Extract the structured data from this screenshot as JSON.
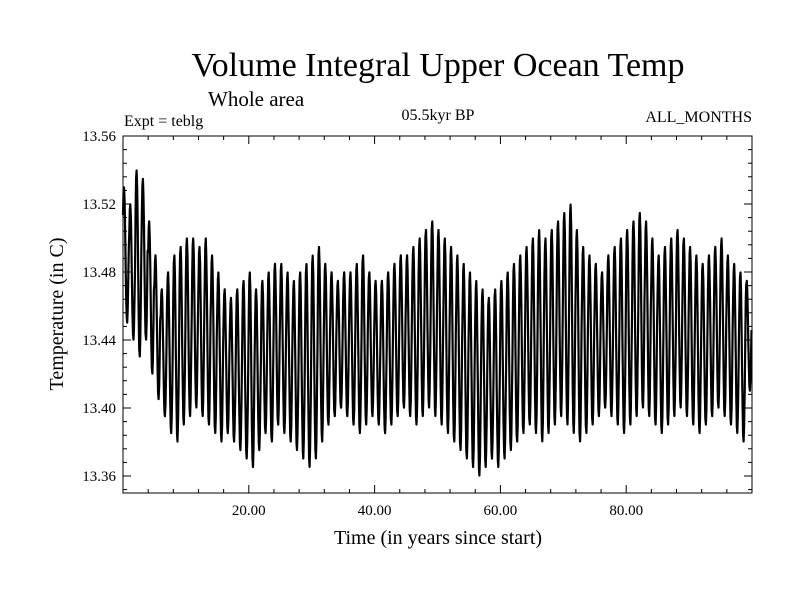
{
  "chart_data": {
    "type": "line",
    "title": "Volume Integral Upper Ocean Temp",
    "subtitle": "Whole area",
    "expt_label": "Expt = teblg",
    "period_label": "05.5kyr BP",
    "months_label": "ALL_MONTHS",
    "xlabel": "Time (in years since start)",
    "ylabel": "Temperature (in C)",
    "xlim": [
      0,
      100
    ],
    "ylim": [
      13.35,
      13.56
    ],
    "x_ticks": [
      20,
      40,
      60,
      80
    ],
    "x_tick_labels": [
      "20.00",
      "40.00",
      "60.00",
      "80.00"
    ],
    "y_ticks": [
      13.36,
      13.4,
      13.44,
      13.48,
      13.52,
      13.56
    ],
    "y_tick_labels": [
      "13.36",
      "13.40",
      "13.44",
      "13.48",
      "13.52",
      "13.56"
    ],
    "series": [
      {
        "name": "upper ocean temperature",
        "sampling": "monthly, annual cycle",
        "annual_max": [
          13.53,
          13.52,
          13.54,
          13.535,
          13.51,
          13.49,
          13.47,
          13.48,
          13.49,
          13.495,
          13.5,
          13.5,
          13.495,
          13.5,
          13.49,
          13.48,
          13.47,
          13.465,
          13.47,
          13.475,
          13.48,
          13.47,
          13.475,
          13.48,
          13.485,
          13.485,
          13.48,
          13.475,
          13.48,
          13.485,
          13.49,
          13.495,
          13.485,
          13.48,
          13.475,
          13.48,
          13.48,
          13.485,
          13.49,
          13.48,
          13.475,
          13.475,
          13.48,
          13.485,
          13.49,
          13.49,
          13.495,
          13.5,
          13.505,
          13.51,
          13.505,
          13.5,
          13.495,
          13.49,
          13.485,
          13.48,
          13.475,
          13.47,
          13.465,
          13.47,
          13.475,
          13.48,
          13.485,
          13.49,
          13.495,
          13.5,
          13.505,
          13.5,
          13.505,
          13.51,
          13.515,
          13.52,
          13.505,
          13.495,
          13.49,
          13.485,
          13.48,
          13.49,
          13.495,
          13.5,
          13.505,
          13.51,
          13.515,
          13.51,
          13.5,
          13.49,
          13.495,
          13.5,
          13.505,
          13.5,
          13.495,
          13.49,
          13.485,
          13.49,
          13.495,
          13.5,
          13.49,
          13.485,
          13.48,
          13.475
        ],
        "annual_min": [
          13.45,
          13.44,
          13.43,
          13.44,
          13.42,
          13.405,
          13.395,
          13.385,
          13.38,
          13.39,
          13.395,
          13.4,
          13.395,
          13.39,
          13.385,
          13.38,
          13.385,
          13.38,
          13.375,
          13.37,
          13.365,
          13.375,
          13.385,
          13.38,
          13.39,
          13.385,
          13.38,
          13.375,
          13.37,
          13.365,
          13.37,
          13.38,
          13.39,
          13.395,
          13.4,
          13.395,
          13.39,
          13.385,
          13.39,
          13.395,
          13.39,
          13.385,
          13.39,
          13.395,
          13.4,
          13.395,
          13.39,
          13.395,
          13.4,
          13.395,
          13.39,
          13.385,
          13.38,
          13.375,
          13.37,
          13.365,
          13.36,
          13.365,
          13.37,
          13.365,
          13.37,
          13.375,
          13.38,
          13.385,
          13.39,
          13.385,
          13.38,
          13.385,
          13.39,
          13.395,
          13.39,
          13.385,
          13.38,
          13.385,
          13.39,
          13.395,
          13.4,
          13.395,
          13.39,
          13.385,
          13.39,
          13.395,
          13.4,
          13.395,
          13.39,
          13.385,
          13.39,
          13.395,
          13.4,
          13.395,
          13.39,
          13.385,
          13.39,
          13.395,
          13.4,
          13.395,
          13.39,
          13.385,
          13.38,
          13.41
        ]
      }
    ]
  }
}
